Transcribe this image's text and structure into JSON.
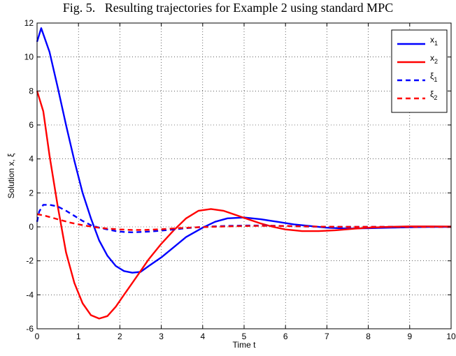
{
  "figure": {
    "caption": "Fig. 5.   Resulting trajectories for Example 2 using standard MPC"
  },
  "chart_data": {
    "type": "line",
    "title": "",
    "xlabel": "Time t",
    "ylabel": "Solution x, ξ",
    "xlim": [
      0,
      10
    ],
    "ylim": [
      -6,
      12
    ],
    "xticks": [
      0,
      1,
      2,
      3,
      4,
      5,
      6,
      7,
      8,
      9,
      10
    ],
    "yticks": [
      -6,
      -4,
      -2,
      0,
      2,
      4,
      6,
      8,
      10,
      12
    ],
    "grid": true,
    "legend_position": "top-right",
    "series": [
      {
        "name": "x",
        "name_subscript": "1",
        "color": "#0000ff",
        "style": "solid",
        "x": [
          0,
          0.1,
          0.3,
          0.5,
          0.7,
          0.9,
          1.1,
          1.3,
          1.5,
          1.7,
          1.9,
          2.1,
          2.3,
          2.5,
          2.7,
          3.0,
          3.3,
          3.6,
          4.0,
          4.3,
          4.6,
          5.0,
          5.4,
          5.8,
          6.2,
          6.6,
          7.0,
          7.5,
          8.0,
          8.5,
          9.0,
          9.5,
          10.0
        ],
        "y": [
          10.9,
          11.7,
          10.3,
          8.2,
          6.0,
          3.9,
          2.0,
          0.5,
          -0.8,
          -1.7,
          -2.3,
          -2.6,
          -2.7,
          -2.65,
          -2.3,
          -1.8,
          -1.2,
          -0.6,
          -0.05,
          0.3,
          0.5,
          0.55,
          0.45,
          0.3,
          0.15,
          0.05,
          -0.05,
          -0.1,
          -0.08,
          -0.05,
          -0.02,
          0.0,
          0.0
        ]
      },
      {
        "name": "x",
        "name_subscript": "2",
        "color": "#ff0000",
        "style": "solid",
        "x": [
          0,
          0.15,
          0.3,
          0.5,
          0.7,
          0.9,
          1.1,
          1.3,
          1.5,
          1.7,
          1.9,
          2.1,
          2.3,
          2.5,
          2.7,
          3.0,
          3.3,
          3.6,
          3.9,
          4.2,
          4.5,
          4.8,
          5.1,
          5.4,
          5.7,
          6.0,
          6.4,
          6.8,
          7.2,
          7.6,
          8.0,
          8.5,
          9.0,
          9.5,
          10.0
        ],
        "y": [
          8.0,
          6.8,
          4.2,
          1.2,
          -1.5,
          -3.3,
          -4.5,
          -5.2,
          -5.4,
          -5.25,
          -4.7,
          -4.0,
          -3.3,
          -2.6,
          -1.9,
          -1.0,
          -0.2,
          0.5,
          0.95,
          1.05,
          0.95,
          0.7,
          0.45,
          0.2,
          0.0,
          -0.15,
          -0.25,
          -0.25,
          -0.2,
          -0.12,
          -0.05,
          0.0,
          0.03,
          0.03,
          0.02
        ]
      },
      {
        "name": "ξ",
        "name_subscript": "1",
        "color": "#0000ff",
        "style": "dashed",
        "x": [
          0,
          0.05,
          0.15,
          0.3,
          0.5,
          0.7,
          0.9,
          1.1,
          1.3,
          1.5,
          1.7,
          1.9,
          2.1,
          2.3,
          2.5,
          2.7,
          3.0,
          3.3,
          3.6,
          4.0,
          4.5,
          5.0,
          5.5,
          6.0,
          6.5,
          7.0,
          7.5,
          8.0,
          8.5,
          9.0,
          9.5,
          10.0
        ],
        "y": [
          0.3,
          0.9,
          1.3,
          1.3,
          1.2,
          0.95,
          0.65,
          0.35,
          0.1,
          -0.05,
          -0.15,
          -0.25,
          -0.3,
          -0.32,
          -0.3,
          -0.28,
          -0.22,
          -0.15,
          -0.08,
          0.0,
          0.05,
          0.08,
          0.08,
          0.05,
          0.02,
          0.0,
          0.0,
          0.0,
          0.0,
          0.0,
          0.0,
          0.0
        ]
      },
      {
        "name": "ξ",
        "name_subscript": "2",
        "color": "#ff0000",
        "style": "dashed",
        "x": [
          0,
          0.2,
          0.5,
          0.8,
          1.1,
          1.4,
          1.7,
          2.0,
          2.3,
          2.6,
          3.0,
          3.4,
          3.8,
          4.2,
          4.6,
          5.0,
          5.5,
          6.0,
          6.5,
          7.0,
          7.5,
          8.0,
          8.5,
          9.0,
          9.5,
          10.0
        ],
        "y": [
          0.75,
          0.65,
          0.45,
          0.25,
          0.1,
          -0.02,
          -0.1,
          -0.15,
          -0.18,
          -0.18,
          -0.14,
          -0.08,
          -0.03,
          0.0,
          0.03,
          0.05,
          0.06,
          0.05,
          0.03,
          0.01,
          0.0,
          0.0,
          0.0,
          0.0,
          0.0,
          0.0
        ]
      }
    ]
  }
}
